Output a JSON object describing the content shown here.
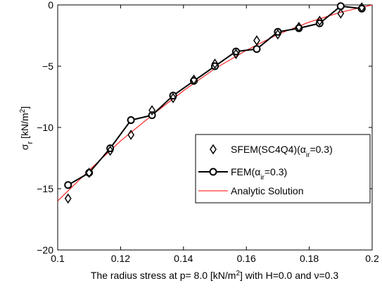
{
  "chart_data": {
    "type": "line",
    "xlim": [
      0.1,
      0.2
    ],
    "ylim": [
      -20,
      0
    ],
    "xticks": [
      0.1,
      0.12,
      0.14,
      0.16,
      0.18,
      0.2
    ],
    "xtick_labels": [
      "0.1",
      "0.12",
      "0.14",
      "0.16",
      "0.18",
      "0.2"
    ],
    "yticks": [
      -20,
      -15,
      -10,
      -5,
      0
    ],
    "ytick_labels": [
      "−20",
      "−15",
      "−10",
      "−5",
      "0"
    ],
    "ylabel": {
      "symbol": "σ",
      "subscript": "r",
      "unit_open": " [kN/m",
      "unit_sup": "2",
      "unit_close": "]"
    },
    "xlabel": {
      "pre": "The radius stress at p=  8.0 [kN/m",
      "sup": "2",
      "post": "] with H=0.0 and ν=0.3"
    },
    "grid": false,
    "legend_position": "lower-right",
    "series": [
      {
        "name": "SFEM(SC4Q4)(α",
        "name_sub": "ir",
        "name_post": "=0.3)",
        "style": "markers",
        "marker": "diamond",
        "color": "#000000",
        "x": [
          0.1033,
          0.11,
          0.1167,
          0.1233,
          0.13,
          0.1367,
          0.1433,
          0.15,
          0.1567,
          0.1633,
          0.17,
          0.1767,
          0.1833,
          0.19,
          0.1967
        ],
        "y": [
          -15.8,
          -13.7,
          -11.9,
          -10.6,
          -8.6,
          -7.6,
          -6.1,
          -4.8,
          -4.0,
          -2.9,
          -2.4,
          -1.8,
          -1.3,
          -0.7,
          -0.2
        ]
      },
      {
        "name": "FEM(α",
        "name_sub": "ir",
        "name_post": "=0.3)",
        "style": "line+markers",
        "marker": "circle",
        "color": "#000000",
        "x": [
          0.1033,
          0.11,
          0.1167,
          0.1233,
          0.13,
          0.1367,
          0.1433,
          0.15,
          0.1567,
          0.1633,
          0.17,
          0.1767,
          0.1833,
          0.19,
          0.1967
        ],
        "y": [
          -14.7,
          -13.7,
          -11.7,
          -9.4,
          -9.0,
          -7.4,
          -6.2,
          -5.0,
          -3.8,
          -3.6,
          -2.2,
          -1.9,
          -1.5,
          -0.1,
          -0.3
        ]
      },
      {
        "name": "Analytic Solution",
        "style": "line",
        "color": "#ff0000",
        "x": [
          0.1,
          0.11,
          0.12,
          0.13,
          0.14,
          0.15,
          0.16,
          0.17,
          0.18,
          0.19,
          0.2
        ],
        "y": [
          -16.0,
          -13.5,
          -11.1,
          -9.0,
          -7.0,
          -5.2,
          -3.7,
          -2.4,
          -1.4,
          -0.6,
          0.0
        ]
      }
    ]
  }
}
